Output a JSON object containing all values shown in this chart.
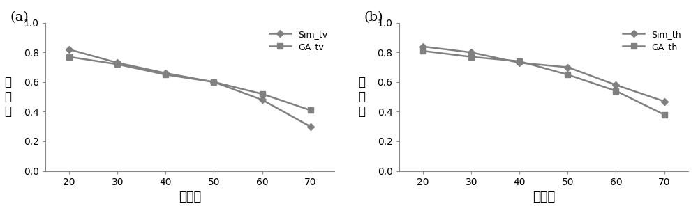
{
  "x": [
    20,
    30,
    40,
    50,
    60,
    70
  ],
  "sim_tv": [
    0.82,
    0.73,
    0.66,
    0.6,
    0.48,
    0.3
  ],
  "ga_tv": [
    0.77,
    0.72,
    0.65,
    0.6,
    0.52,
    0.41
  ],
  "sim_th": [
    0.84,
    0.8,
    0.73,
    0.7,
    0.58,
    0.47
  ],
  "ga_th": [
    0.81,
    0.77,
    0.74,
    0.65,
    0.54,
    0.38
  ],
  "xlabel": "高度角",
  "ylabel": "透过率",
  "label_a": "(a)",
  "label_b": "(b)",
  "legend_a": [
    "Sim_tv",
    "GA_tv"
  ],
  "legend_b": [
    "Sim_th",
    "GA_th"
  ],
  "ylim": [
    0,
    1.0
  ],
  "xlim": [
    15,
    75
  ],
  "yticks": [
    0,
    0.2,
    0.4,
    0.6,
    0.8,
    1
  ],
  "xticks": [
    20,
    30,
    40,
    50,
    60,
    70
  ],
  "line_color": "#808080",
  "bg_color": "#ffffff"
}
